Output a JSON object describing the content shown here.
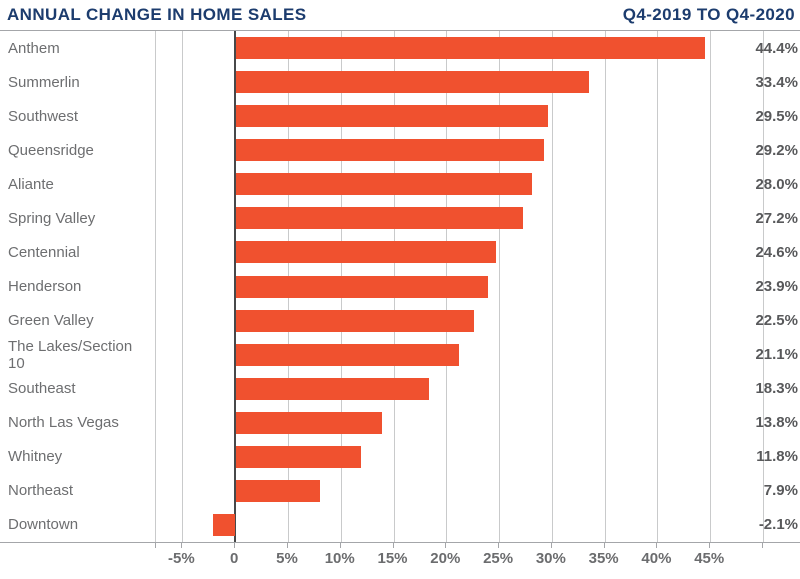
{
  "header": {
    "title": "ANNUAL CHANGE IN HOME SALES",
    "subtitle": "Q4-2019 TO Q4-2020"
  },
  "colors": {
    "navy": "#1C3C6E",
    "bar_orange": "#F0512F",
    "category_gray": "#6D6E70",
    "value_gray": "#58595B",
    "tick_gray": "#6B6C6E",
    "gridline": "#C9CACB",
    "zero_line": "#47484A",
    "axis_line": "#A4A6A9"
  },
  "chart_data": {
    "type": "bar",
    "orientation": "horizontal",
    "title": "ANNUAL CHANGE IN HOME SALES",
    "subtitle": "Q4-2019 TO Q4-2020",
    "categories": [
      "Anthem",
      "Summerlin",
      "Southwest",
      "Queensridge",
      "Aliante",
      "Spring Valley",
      "Centennial",
      "Henderson",
      "Green Valley",
      "The Lakes/Section 10",
      "Southeast",
      "North Las Vegas",
      "Whitney",
      "Northeast",
      "Downtown"
    ],
    "values": [
      44.4,
      33.4,
      29.5,
      29.2,
      28.0,
      27.2,
      24.6,
      23.9,
      22.5,
      21.1,
      18.3,
      13.8,
      11.8,
      7.9,
      -2.1
    ],
    "value_labels": [
      "44.4%",
      "33.4%",
      "29.5%",
      "29.2%",
      "28.0%",
      "27.2%",
      "24.6%",
      "23.9%",
      "22.5%",
      "21.1%",
      "18.3%",
      "13.8%",
      "11.8%",
      "7.9%",
      "-2.1%"
    ],
    "xlabel": "",
    "ylabel": "",
    "xlim": [
      -7.5,
      50
    ],
    "x_ticks": [
      -5,
      0,
      5,
      10,
      15,
      20,
      25,
      30,
      35,
      40,
      45
    ],
    "x_tick_labels": [
      "-5%",
      "0",
      "5%",
      "10%",
      "15%",
      "20%",
      "25%",
      "30%",
      "35%",
      "40%",
      "45%"
    ],
    "grid": "vertical-gridlines-on",
    "legend": "none"
  }
}
